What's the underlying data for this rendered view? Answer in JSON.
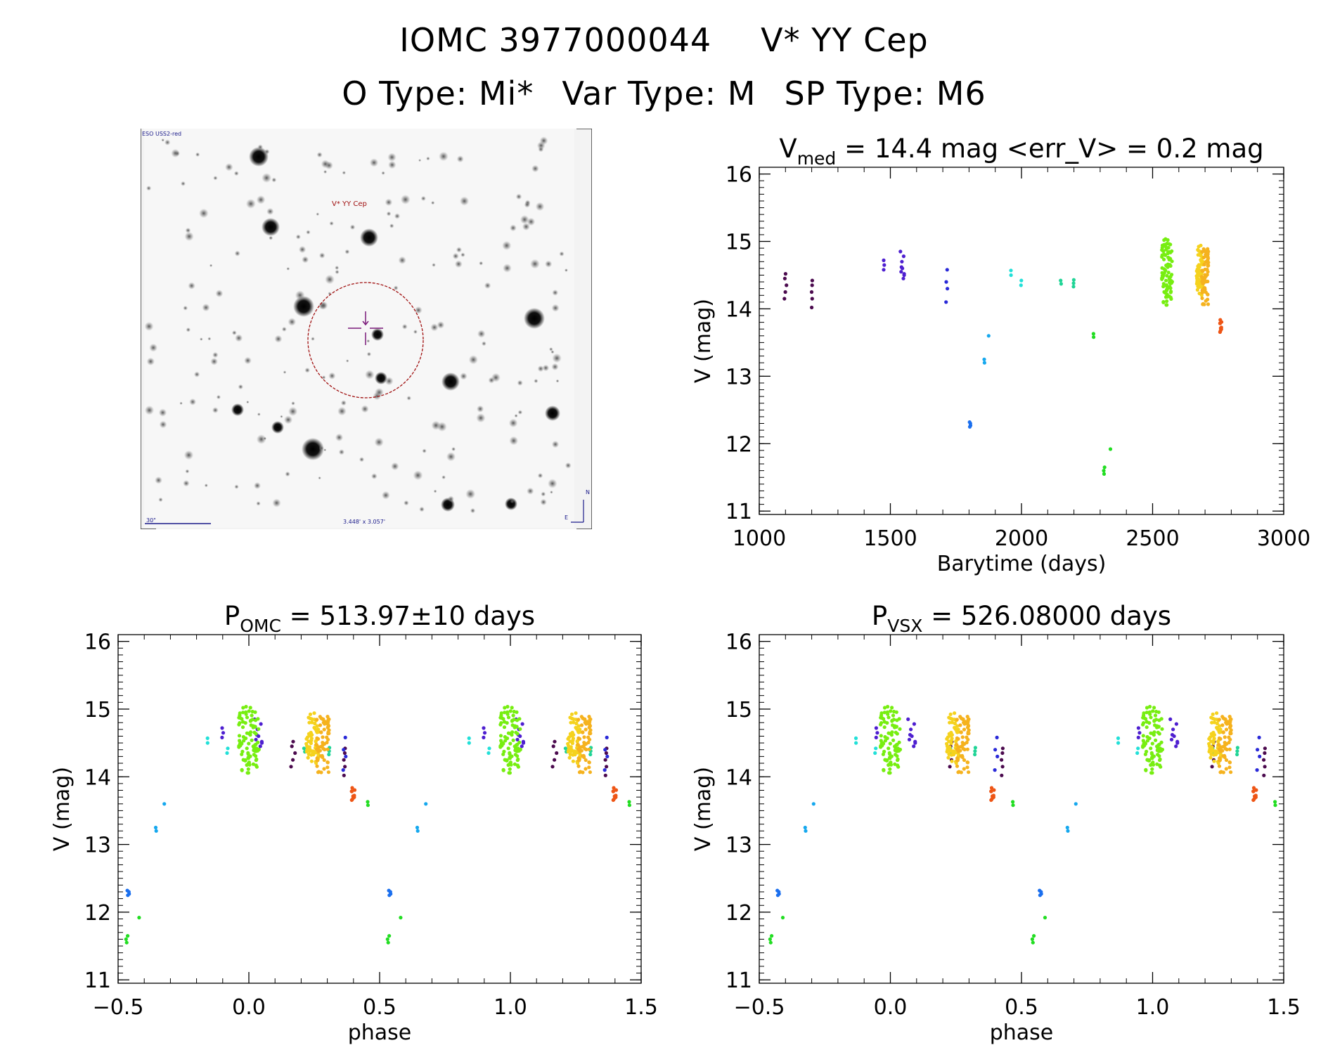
{
  "header": {
    "object_id": "IOMC 3977000044",
    "star_name": "V* YY Cep",
    "o_type": "O Type: Mi*",
    "var_type": "Var Type: M",
    "sp_type": "SP Type: M6"
  },
  "finder": {
    "survey_label": "ESO USS2-red",
    "target_label": "V* YY Cep",
    "scale_label": "30\"",
    "size_label": "3.448' x 3.057'",
    "north_label": "N",
    "east_label": "E"
  },
  "colors": {
    "c_dpurple": "#4b0a4e",
    "c_purple": "#6a1fb0",
    "c_violet": "#4e1fd0",
    "c_blue": "#2a2ad8",
    "c_azure": "#1b6fee",
    "c_sky": "#16a8ee",
    "c_cyan": "#22e0d8",
    "c_teal": "#20d496",
    "c_green": "#22dd22",
    "c_lgreen": "#77ee11",
    "c_yellow": "#f5d21e",
    "c_gold": "#f5b21e",
    "c_orange": "#f47d1e",
    "c_dorange": "#ee5515",
    "c_black": "#000000"
  },
  "chart_data": [
    {
      "type": "scatter",
      "title_main": "V",
      "title_sub": "med",
      "title_rest": " = 14.4 mag <err_V> = 0.2 mag",
      "xlabel": "Barytime (days)",
      "ylabel": "V (mag)",
      "xlim": [
        1000,
        3000
      ],
      "ylim": [
        16.1,
        10.95
      ],
      "xticks": [
        1000,
        1500,
        2000,
        2500,
        3000
      ],
      "xtick_labels": [
        "1000",
        "1500",
        "2000",
        "2500",
        "3000"
      ],
      "yticks": [
        11,
        12,
        13,
        14,
        15,
        16
      ],
      "ytick_labels": [
        "11",
        "12",
        "13",
        "14",
        "15",
        "16"
      ],
      "groups": [
        {
          "color": "c_dpurple",
          "x": 1100,
          "spread": 8,
          "mags": [
            14.15,
            14.25,
            14.35,
            14.45,
            14.52
          ]
        },
        {
          "color": "c_dpurple",
          "x": 1200,
          "spread": 6,
          "mags": [
            14.02,
            14.15,
            14.25,
            14.35,
            14.42
          ]
        },
        {
          "color": "c_violet",
          "x": 1475,
          "spread": 4,
          "mags": [
            14.58,
            14.65,
            14.72
          ]
        },
        {
          "color": "c_violet",
          "x": 1550,
          "spread": 30,
          "mags": [
            14.45,
            14.5,
            14.55,
            14.62,
            14.7,
            14.78,
            14.85,
            14.6,
            14.52
          ]
        },
        {
          "color": "c_blue",
          "x": 1715,
          "spread": 6,
          "mags": [
            14.1,
            14.3,
            14.4,
            14.58
          ]
        },
        {
          "color": "c_azure",
          "x": 1805,
          "spread": 8,
          "mags": [
            12.25,
            12.27,
            12.3,
            12.32
          ]
        },
        {
          "color": "c_sky",
          "x": 1860,
          "spread": 4,
          "mags": [
            13.2,
            13.25
          ]
        },
        {
          "color": "c_sky",
          "x": 1875,
          "spread": 2,
          "mags": [
            13.6
          ]
        },
        {
          "color": "c_cyan",
          "x": 1960,
          "spread": 4,
          "mags": [
            14.5,
            14.57
          ]
        },
        {
          "color": "c_cyan",
          "x": 2000,
          "spread": 4,
          "mags": [
            14.35,
            14.42
          ]
        },
        {
          "color": "c_teal",
          "x": 2150,
          "spread": 4,
          "mags": [
            14.37,
            14.42
          ]
        },
        {
          "color": "c_teal",
          "x": 2200,
          "spread": 4,
          "mags": [
            14.33,
            14.38,
            14.43
          ]
        },
        {
          "color": "c_green",
          "x": 2275,
          "spread": 4,
          "mags": [
            13.58,
            13.63
          ]
        },
        {
          "color": "c_green",
          "x": 2315,
          "spread": 4,
          "mags": [
            11.55,
            11.6,
            11.65
          ]
        },
        {
          "color": "c_green",
          "x": 2340,
          "spread": 2,
          "mags": [
            11.92
          ]
        },
        {
          "color": "c_lgreen",
          "x": 2555,
          "spread": 40,
          "min": 14.05,
          "max": 15.05,
          "n": 90
        },
        {
          "color": "c_yellow",
          "x": 2680,
          "spread": 25,
          "min": 14.2,
          "max": 14.95,
          "n": 60
        },
        {
          "color": "c_gold",
          "x": 2700,
          "spread": 25,
          "min": 14.05,
          "max": 14.9,
          "n": 60
        },
        {
          "color": "c_dorange",
          "x": 2760,
          "spread": 6,
          "min": 13.6,
          "max": 13.85,
          "n": 10
        }
      ]
    },
    {
      "type": "scatter",
      "title_main": "P",
      "title_sub": "OMC",
      "title_rest": " = 513.97±10 days",
      "period_days": 513.97,
      "epoch": 2555,
      "xlabel": "phase",
      "ylabel": "V (mag)",
      "xlim": [
        -0.5,
        1.5
      ],
      "ylim": [
        16.1,
        10.95
      ],
      "xticks": [
        -0.5,
        0.0,
        0.5,
        1.0,
        1.5
      ],
      "xtick_labels": [
        "−0.5",
        "0.0",
        "0.5",
        "1.0",
        "1.5"
      ],
      "yticks": [
        11,
        12,
        13,
        14,
        15,
        16
      ],
      "ytick_labels": [
        "11",
        "12",
        "13",
        "14",
        "15",
        "16"
      ]
    },
    {
      "type": "scatter",
      "title_main": "P",
      "title_sub": "VSX",
      "title_rest": " = 526.08000 days",
      "period_days": 526.08,
      "epoch": 2555,
      "xlabel": "phase",
      "ylabel": "V (mag)",
      "xlim": [
        -0.5,
        1.5
      ],
      "ylim": [
        16.1,
        10.95
      ],
      "xticks": [
        -0.5,
        0.0,
        0.5,
        1.0,
        1.5
      ],
      "xtick_labels": [
        "−0.5",
        "0.0",
        "0.5",
        "1.0",
        "1.5"
      ],
      "yticks": [
        11,
        12,
        13,
        14,
        15,
        16
      ],
      "ytick_labels": [
        "11",
        "12",
        "13",
        "14",
        "15",
        "16"
      ]
    }
  ]
}
